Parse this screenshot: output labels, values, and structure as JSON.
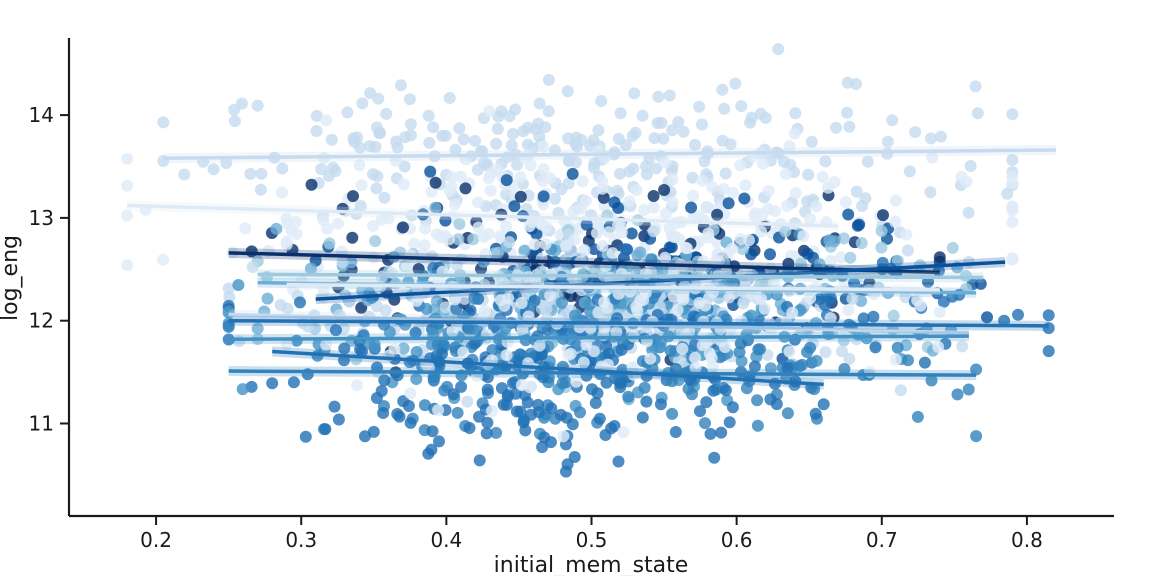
{
  "chart_data": {
    "type": "scatter",
    "xlabel": "initial_mem_state",
    "ylabel": "log_eng",
    "xlim": [
      0.14,
      0.86
    ],
    "ylim": [
      10.1,
      14.75
    ],
    "x_ticks": [
      0.2,
      0.3,
      0.4,
      0.5,
      0.6,
      0.7,
      0.8
    ],
    "x_tick_labels": [
      "0.2",
      "0.3",
      "0.4",
      "0.5",
      "0.6",
      "0.7",
      "0.8"
    ],
    "y_ticks": [
      11,
      12,
      13,
      14
    ],
    "y_tick_labels": [
      "11",
      "12",
      "13",
      "14"
    ],
    "grid": false,
    "legend": "none",
    "point_alpha": 0.8,
    "series": [
      {
        "color": "#c6dbef",
        "x_range": [
          0.205,
          0.79
        ],
        "y_center": 13.6,
        "y_spread": 0.35,
        "n": 260,
        "fit": [
          [
            0.205,
            13.58
          ],
          [
            0.82,
            13.66
          ]
        ]
      },
      {
        "color": "#deebf7",
        "x_range": [
          0.18,
          0.79
        ],
        "y_center": 13.0,
        "y_spread": 0.35,
        "n": 200,
        "fit": [
          [
            0.18,
            13.12
          ],
          [
            0.67,
            12.92
          ]
        ]
      },
      {
        "color": "#08306b",
        "x_range": [
          0.25,
          0.74
        ],
        "y_center": 12.55,
        "y_spread": 0.35,
        "n": 110,
        "fit": [
          [
            0.25,
            12.66
          ],
          [
            0.74,
            12.47
          ]
        ]
      },
      {
        "color": "#08519c",
        "x_range": [
          0.31,
          0.785
        ],
        "y_center": 12.45,
        "y_spread": 0.35,
        "n": 110,
        "fit": [
          [
            0.31,
            12.21
          ],
          [
            0.785,
            12.57
          ]
        ]
      },
      {
        "color": "#9ecae1",
        "x_range": [
          0.27,
          0.77
        ],
        "y_center": 12.35,
        "y_spread": 0.3,
        "n": 140,
        "fit": [
          [
            0.27,
            12.45
          ],
          [
            0.77,
            12.42
          ]
        ]
      },
      {
        "color": "#6baed6",
        "x_range": [
          0.27,
          0.765
        ],
        "y_center": 12.25,
        "y_spread": 0.3,
        "n": 140,
        "fit": [
          [
            0.27,
            12.37
          ],
          [
            0.765,
            12.27
          ]
        ]
      },
      {
        "color": "#c6dbef",
        "x_range": [
          0.25,
          0.76
        ],
        "y_center": 12.05,
        "y_spread": 0.3,
        "n": 160,
        "fit": [
          [
            0.25,
            12.06
          ],
          [
            0.76,
            11.88
          ]
        ]
      },
      {
        "color": "#2171b5",
        "x_range": [
          0.25,
          0.815
        ],
        "y_center": 11.95,
        "y_spread": 0.3,
        "n": 130,
        "fit": [
          [
            0.25,
            12.0
          ],
          [
            0.815,
            11.95
          ]
        ]
      },
      {
        "color": "#4292c6",
        "x_range": [
          0.25,
          0.76
        ],
        "y_center": 11.85,
        "y_spread": 0.3,
        "n": 130,
        "fit": [
          [
            0.25,
            11.82
          ],
          [
            0.76,
            11.85
          ]
        ]
      },
      {
        "color": "#3182bd",
        "x_range": [
          0.25,
          0.765
        ],
        "y_center": 11.5,
        "y_spread": 0.3,
        "n": 140,
        "fit": [
          [
            0.25,
            11.51
          ],
          [
            0.765,
            11.47
          ]
        ]
      },
      {
        "color": "#2171b5",
        "x_range": [
          0.28,
          0.66
        ],
        "y_center": 11.3,
        "y_spread": 0.35,
        "n": 130,
        "fit": [
          [
            0.28,
            11.7
          ],
          [
            0.66,
            11.38
          ]
        ]
      },
      {
        "color": "#deebf7",
        "x_range": [
          0.29,
          0.74
        ],
        "y_center": 12.2,
        "y_spread": 0.45,
        "n": 220,
        "fit": [
          [
            0.29,
            12.35
          ],
          [
            0.74,
            12.3
          ]
        ]
      }
    ]
  }
}
